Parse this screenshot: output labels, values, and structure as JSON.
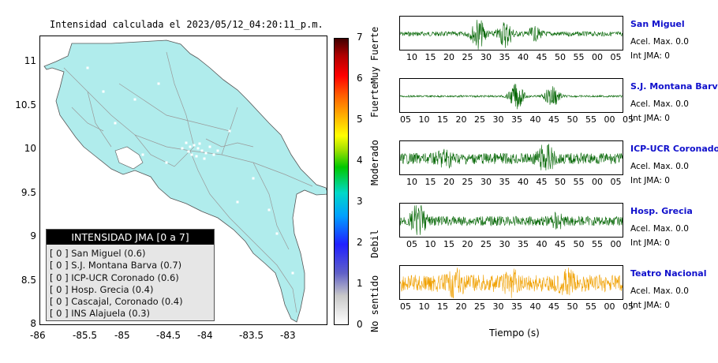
{
  "map": {
    "title": "Intensidad calculada el 2023/05/12_04:20:11_p.m.",
    "land_color": "#b0ecec",
    "x_ticks": [
      "-86",
      "-85.5",
      "-85",
      "-84.5",
      "-84",
      "-83.5",
      "-83"
    ],
    "y_ticks": [
      "11",
      "10.5",
      "10",
      "9.5",
      "9",
      "8.5",
      "8"
    ]
  },
  "legend": {
    "title": "INTENSIDAD JMA [0 a 7]",
    "entries": [
      "[ 0 ]  San Miguel (0.6)",
      "[ 0 ]  S.J. Montana Barva (0.7)",
      "[ 0 ]  ICP-UCR Coronado (0.6)",
      "[ 0 ]  Hosp. Grecia (0.4)",
      "[ 0 ]  Cascajal, Coronado (0.4)",
      "[ 0 ]  INS Alajuela (0.3)"
    ]
  },
  "colorbar": {
    "ticks": [
      "0",
      "1",
      "2",
      "3",
      "4",
      "5",
      "6",
      "7"
    ],
    "labels": [
      "No sentido",
      "Debil",
      "Moderado",
      "Fuerte",
      "Muy Fuerte"
    ]
  },
  "waves": {
    "xlabel": "Tiempo (s)",
    "stations": [
      {
        "name": "San Miguel",
        "acel": "Acel. Max. 0.0",
        "jma": "Int JMA: 0",
        "color": "#006400",
        "ticks": [
          "10",
          "15",
          "20",
          "25",
          "30",
          "35",
          "40",
          "45",
          "50",
          "55",
          "00",
          "05"
        ]
      },
      {
        "name": "S.J. Montana Barva",
        "acel": "Acel. Max. 0.0",
        "jma": "Int JMA: 0",
        "color": "#006400",
        "ticks": [
          "05",
          "10",
          "15",
          "20",
          "25",
          "30",
          "35",
          "40",
          "45",
          "50",
          "55",
          "00",
          "05"
        ]
      },
      {
        "name": "ICP-UCR Coronado",
        "acel": "Acel. Max. 0.0",
        "jma": "Int JMA: 0",
        "color": "#006400",
        "ticks": [
          "10",
          "15",
          "20",
          "25",
          "30",
          "35",
          "40",
          "45",
          "50",
          "55",
          "00",
          "05"
        ]
      },
      {
        "name": "Hosp. Grecia",
        "acel": "Acel. Max. 0.0",
        "jma": "Int JMA: 0",
        "color": "#006400",
        "ticks": [
          "05",
          "10",
          "15",
          "20",
          "25",
          "30",
          "35",
          "40",
          "45",
          "50",
          "55",
          "00"
        ]
      },
      {
        "name": "Teatro Nacional",
        "acel": "Acel. Max. 0.0",
        "jma": "Int JMA: 0",
        "color": "#f0a000",
        "ticks": [
          "05",
          "10",
          "15",
          "20",
          "25",
          "30",
          "35",
          "40",
          "45",
          "50",
          "55",
          "00",
          "05"
        ]
      }
    ]
  },
  "chart_data": {
    "type": "heatmap",
    "title": "Intensidad calculada el 2023/05/12_04:20:11_p.m.",
    "xlim": [
      -86,
      -82.5
    ],
    "ylim": [
      8,
      11.3
    ],
    "colorbar_range": [
      0,
      7
    ],
    "series": [
      {
        "name": "San Miguel",
        "values": [
          0.6
        ]
      },
      {
        "name": "S.J. Montana Barva",
        "values": [
          0.7
        ]
      },
      {
        "name": "ICP-UCR Coronado",
        "values": [
          0.6
        ]
      },
      {
        "name": "Hosp. Grecia",
        "values": [
          0.4
        ]
      },
      {
        "name": "Cascajal, Coronado",
        "values": [
          0.4
        ]
      },
      {
        "name": "INS Alajuela",
        "values": [
          0.3
        ]
      }
    ]
  }
}
